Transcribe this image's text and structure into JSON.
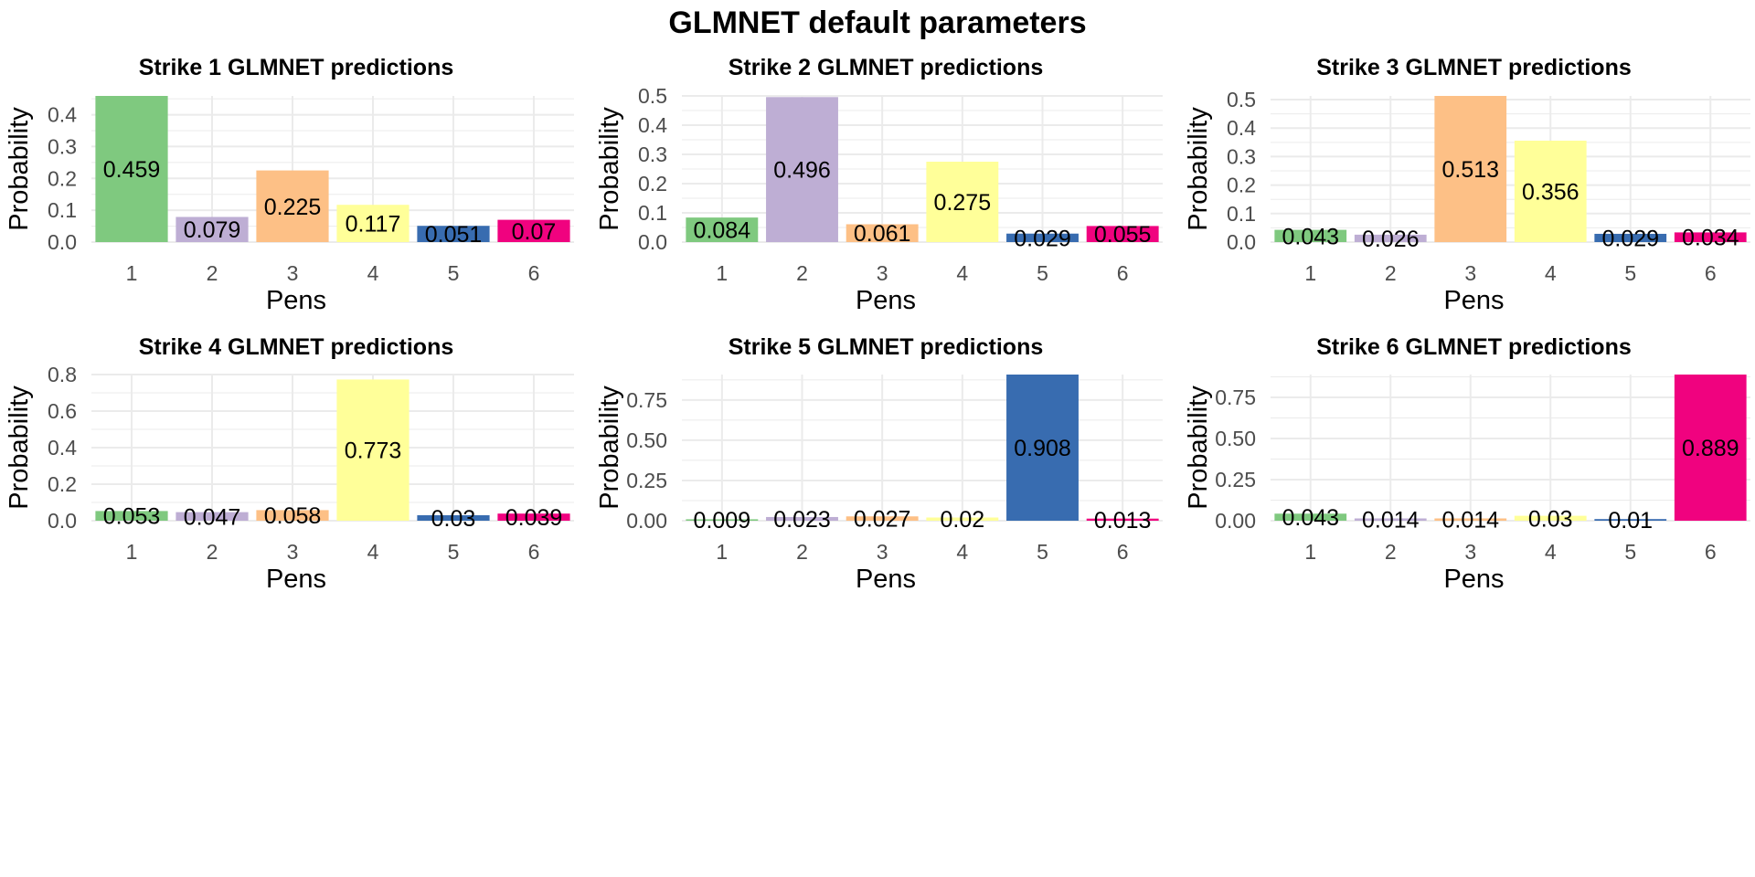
{
  "figure": {
    "title": "GLMNET default parameters",
    "colors": {
      "palette": [
        "#7fc97f",
        "#beaed4",
        "#fdc086",
        "#ffff99",
        "#386cb0",
        "#f0027f"
      ],
      "grid": "#ebebeb",
      "axis_text": "#4d4d4d",
      "label_text": "#000000"
    }
  },
  "chart_data": [
    {
      "type": "bar",
      "title": "Strike 1 GLMNET predictions",
      "xlabel": "Pens",
      "ylabel": "Probability",
      "categories": [
        "1",
        "2",
        "3",
        "4",
        "5",
        "6"
      ],
      "values": [
        0.459,
        0.079,
        0.225,
        0.117,
        0.051,
        0.07
      ],
      "labels": [
        "0.459",
        "0.079",
        "0.225",
        "0.117",
        "0.051",
        "0.07"
      ],
      "yticks": [
        "0.0",
        "0.1",
        "0.2",
        "0.3",
        "0.4"
      ],
      "ylim": [
        0,
        0.459
      ],
      "grid": true,
      "legend": "none"
    },
    {
      "type": "bar",
      "title": "Strike 2 GLMNET predictions",
      "xlabel": "Pens",
      "ylabel": "Probability",
      "categories": [
        "1",
        "2",
        "3",
        "4",
        "5",
        "6"
      ],
      "values": [
        0.084,
        0.496,
        0.061,
        0.275,
        0.029,
        0.055
      ],
      "labels": [
        "0.084",
        "0.496",
        "0.061",
        "0.275",
        "0.029",
        "0.055"
      ],
      "yticks": [
        "0.0",
        "0.1",
        "0.2",
        "0.3",
        "0.4",
        "0.5"
      ],
      "ylim": [
        0,
        0.5
      ],
      "grid": true,
      "legend": "none"
    },
    {
      "type": "bar",
      "title": "Strike 3 GLMNET predictions",
      "xlabel": "Pens",
      "ylabel": "Probability",
      "categories": [
        "1",
        "2",
        "3",
        "4",
        "5",
        "6"
      ],
      "values": [
        0.043,
        0.026,
        0.513,
        0.356,
        0.029,
        0.034
      ],
      "labels": [
        "0.043",
        "0.026",
        "0.513",
        "0.356",
        "0.029",
        "0.034"
      ],
      "yticks": [
        "0.0",
        "0.1",
        "0.2",
        "0.3",
        "0.4",
        "0.5"
      ],
      "ylim": [
        0,
        0.513
      ],
      "grid": true,
      "legend": "none"
    },
    {
      "type": "bar",
      "title": "Strike 4 GLMNET predictions",
      "xlabel": "Pens",
      "ylabel": "Probability",
      "categories": [
        "1",
        "2",
        "3",
        "4",
        "5",
        "6"
      ],
      "values": [
        0.053,
        0.047,
        0.058,
        0.773,
        0.03,
        0.039
      ],
      "labels": [
        "0.053",
        "0.047",
        "0.058",
        "0.773",
        "0.03",
        "0.039"
      ],
      "yticks": [
        "0.0",
        "0.2",
        "0.4",
        "0.6",
        "0.8"
      ],
      "ylim": [
        0,
        0.8
      ],
      "grid": true,
      "legend": "none"
    },
    {
      "type": "bar",
      "title": "Strike 5 GLMNET predictions",
      "xlabel": "Pens",
      "ylabel": "Probability",
      "categories": [
        "1",
        "2",
        "3",
        "4",
        "5",
        "6"
      ],
      "values": [
        0.009,
        0.023,
        0.027,
        0.02,
        0.908,
        0.013
      ],
      "labels": [
        "0.009",
        "0.023",
        "0.027",
        "0.02",
        "0.908",
        "0.013"
      ],
      "yticks": [
        "0.00",
        "0.25",
        "0.50",
        "0.75"
      ],
      "ylim": [
        0,
        0.908
      ],
      "grid": true,
      "legend": "none"
    },
    {
      "type": "bar",
      "title": "Strike 6 GLMNET predictions",
      "xlabel": "Pens",
      "ylabel": "Probability",
      "categories": [
        "1",
        "2",
        "3",
        "4",
        "5",
        "6"
      ],
      "values": [
        0.043,
        0.014,
        0.014,
        0.03,
        0.01,
        0.889
      ],
      "labels": [
        "0.043",
        "0.014",
        "0.014",
        "0.03",
        "0.01",
        "0.889"
      ],
      "yticks": [
        "0.00",
        "0.25",
        "0.50",
        "0.75"
      ],
      "ylim": [
        0,
        0.889
      ],
      "grid": true,
      "legend": "none"
    }
  ]
}
